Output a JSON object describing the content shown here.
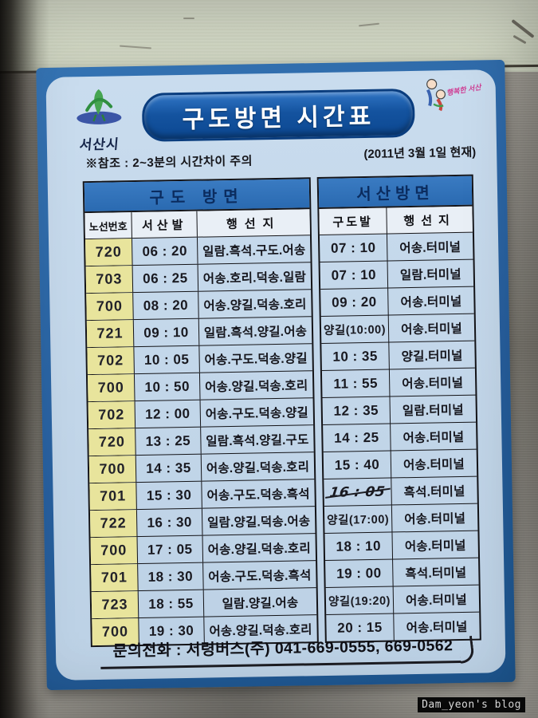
{
  "sign": {
    "agency_logo_label": "서산시",
    "title": "구도방면 시간표",
    "mascot_caption": "행복한 서산",
    "note": "※참조 : 2~3분의 시간차이 주의",
    "as_of": "(2011년 3월 1일 현재)",
    "contact": "문의전화 : 서령버스(주) 041-669-0555, 669-0562"
  },
  "gudo_table": {
    "title": "구도 방면",
    "columns": [
      "노선번호",
      "서산발",
      "행선지"
    ],
    "rows": [
      [
        "720",
        "06 : 20",
        "일람.흑석.구도.어송"
      ],
      [
        "703",
        "06 : 25",
        "어송.호리.덕송.일람"
      ],
      [
        "700",
        "08 : 20",
        "어송.양길.덕송.호리"
      ],
      [
        "721",
        "09 : 10",
        "일람.흑석.양길.어송"
      ],
      [
        "702",
        "10 : 05",
        "어송.구도.덕송.양길"
      ],
      [
        "700",
        "10 : 50",
        "어송.양길.덕송.호리"
      ],
      [
        "702",
        "12 : 00",
        "어송.구도.덕송.양길"
      ],
      [
        "720",
        "13 : 25",
        "일람.흑석.양길.구도"
      ],
      [
        "700",
        "14 : 35",
        "어송.양길.덕송.호리"
      ],
      [
        "701",
        "15 : 30",
        "어송.구도.덕송.흑석"
      ],
      [
        "722",
        "16 : 30",
        "일람.양길.덕송.어송"
      ],
      [
        "700",
        "17 : 05",
        "어송.양길.덕송.호리"
      ],
      [
        "701",
        "18 : 30",
        "어송.구도.덕송.흑석"
      ],
      [
        "723",
        "18 : 55",
        "일람.양길.어송"
      ],
      [
        "700",
        "19 : 30",
        "어송.양길.덕송.호리"
      ]
    ]
  },
  "seosan_table": {
    "title": "서산방면",
    "columns": [
      "구도발",
      "행선지"
    ],
    "rows": [
      {
        "depart": "07 : 10",
        "dest": "어송.터미널"
      },
      {
        "depart": "07 : 10",
        "dest": "일람.터미널"
      },
      {
        "depart": "09 : 20",
        "dest": "어송.터미널"
      },
      {
        "depart": "양길(10:00)",
        "dest": "어송.터미널",
        "small": true
      },
      {
        "depart": "10 : 35",
        "dest": "양길.터미널"
      },
      {
        "depart": "11 : 55",
        "dest": "어송.터미널"
      },
      {
        "depart": "12 : 35",
        "dest": "일람.터미널"
      },
      {
        "depart": "14 : 25",
        "dest": "어송.터미널"
      },
      {
        "depart": "15 : 40",
        "dest": "어송.터미널"
      },
      {
        "depart": "16 : 05",
        "dest": "흑석.터미널",
        "struck": true
      },
      {
        "depart": "양길(17:00)",
        "dest": "어송.터미널",
        "small": true
      },
      {
        "depart": "18 : 10",
        "dest": "어송.터미널"
      },
      {
        "depart": "19 : 00",
        "dest": "흑석.터미널"
      },
      {
        "depart": "양길(19:20)",
        "dest": "어송.터미널",
        "small": true
      },
      {
        "depart": "20 : 15",
        "dest": "어송.터미널"
      }
    ]
  },
  "photo": {
    "watermark": "Dam_yeon's blog"
  },
  "colors": {
    "sign_border_blue": "#2b6aaa",
    "panel_blue": "#c2d6e9",
    "table_header_blue": "#2d70b8",
    "route_yellow": "#e8e49c",
    "title_pill_blue": "#0d4d99"
  }
}
